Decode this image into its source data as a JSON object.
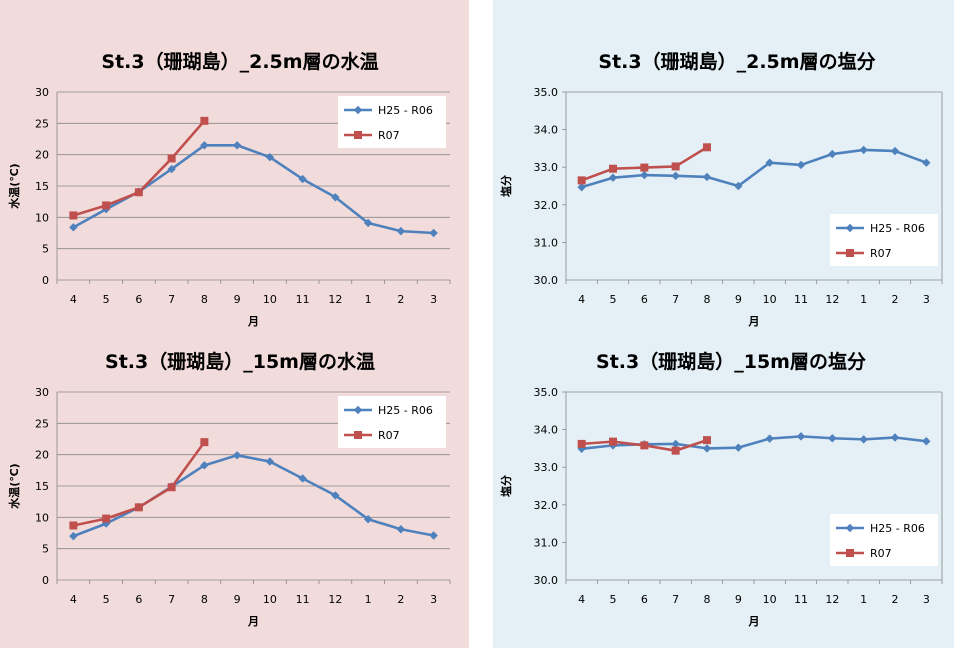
{
  "colors": {
    "left_panel_bg": "#f2dcdb",
    "right_panel_bg": "#e4f0f6",
    "series_blue": "#4f81bd",
    "series_red": "#c0504d"
  },
  "chart_data": [
    {
      "type": "line",
      "title": "St.3（珊瑚島）_2.5m層の水温",
      "xlabel": "月",
      "ylabel": "水温(℃)",
      "categories": [
        "4",
        "5",
        "6",
        "7",
        "8",
        "9",
        "10",
        "11",
        "12",
        "1",
        "2",
        "3"
      ],
      "ylim": [
        0,
        30
      ],
      "yticks": [
        "0",
        "5",
        "10",
        "15",
        "20",
        "25",
        "30"
      ],
      "grid": true,
      "legend_position": "top-right",
      "series": [
        {
          "name": "H25 - R06",
          "color": "#4f81bd",
          "marker": "diamond",
          "values": [
            8.4,
            11.3,
            14.1,
            17.7,
            21.5,
            21.5,
            19.6,
            16.1,
            13.2,
            9.1,
            7.8,
            7.5
          ]
        },
        {
          "name": "R07",
          "color": "#c0504d",
          "marker": "square",
          "values": [
            10.3,
            11.9,
            14.0,
            19.4,
            25.4,
            null,
            null,
            null,
            null,
            null,
            null,
            null
          ]
        }
      ]
    },
    {
      "type": "line",
      "title": "St.3（珊瑚島）_2.5m層の塩分",
      "xlabel": "月",
      "ylabel": "塩分",
      "categories": [
        "4",
        "5",
        "6",
        "7",
        "8",
        "9",
        "10",
        "11",
        "12",
        "1",
        "2",
        "3"
      ],
      "ylim": [
        30,
        35
      ],
      "yticks": [
        "30.0",
        "31.0",
        "32.0",
        "33.0",
        "34.0",
        "35.0"
      ],
      "grid": false,
      "legend_position": "bottom-right",
      "series": [
        {
          "name": "H25 - R06",
          "color": "#4f81bd",
          "marker": "diamond",
          "values": [
            32.47,
            32.72,
            32.79,
            32.77,
            32.74,
            32.5,
            33.12,
            33.06,
            33.35,
            33.46,
            33.43,
            33.12
          ]
        },
        {
          "name": "R07",
          "color": "#c0504d",
          "marker": "square",
          "values": [
            32.65,
            32.96,
            32.99,
            33.02,
            33.53,
            null,
            null,
            null,
            null,
            null,
            null,
            null
          ]
        }
      ]
    },
    {
      "type": "line",
      "title": "St.3（珊瑚島）_15m層の水温",
      "xlabel": "月",
      "ylabel": "水温(℃)",
      "categories": [
        "4",
        "5",
        "6",
        "7",
        "8",
        "9",
        "10",
        "11",
        "12",
        "1",
        "2",
        "3"
      ],
      "ylim": [
        0,
        30
      ],
      "yticks": [
        "0",
        "5",
        "10",
        "15",
        "20",
        "25",
        "30"
      ],
      "grid": true,
      "legend_position": "top-right",
      "series": [
        {
          "name": "H25 - R06",
          "color": "#4f81bd",
          "marker": "diamond",
          "values": [
            7.0,
            9.0,
            11.6,
            14.9,
            18.3,
            19.9,
            18.9,
            16.2,
            13.5,
            9.7,
            8.1,
            7.1
          ]
        },
        {
          "name": "R07",
          "color": "#c0504d",
          "marker": "square",
          "values": [
            8.7,
            9.8,
            11.6,
            14.8,
            22.0,
            null,
            null,
            null,
            null,
            null,
            null,
            null
          ]
        }
      ]
    },
    {
      "type": "line",
      "title": "St.3（珊瑚島）_15m層の塩分",
      "xlabel": "月",
      "ylabel": "塩分",
      "categories": [
        "4",
        "5",
        "6",
        "7",
        "8",
        "9",
        "10",
        "11",
        "12",
        "1",
        "2",
        "3"
      ],
      "ylim": [
        30,
        35
      ],
      "yticks": [
        "30.0",
        "31.0",
        "32.0",
        "33.0",
        "34.0",
        "35.0"
      ],
      "grid": false,
      "legend_position": "bottom-right",
      "series": [
        {
          "name": "H25 - R06",
          "color": "#4f81bd",
          "marker": "diamond",
          "values": [
            33.49,
            33.58,
            33.61,
            33.62,
            33.5,
            33.52,
            33.76,
            33.82,
            33.77,
            33.74,
            33.79,
            33.69
          ]
        },
        {
          "name": "R07",
          "color": "#c0504d",
          "marker": "square",
          "values": [
            33.62,
            33.68,
            33.58,
            33.44,
            33.72,
            null,
            null,
            null,
            null,
            null,
            null,
            null
          ]
        }
      ]
    }
  ]
}
